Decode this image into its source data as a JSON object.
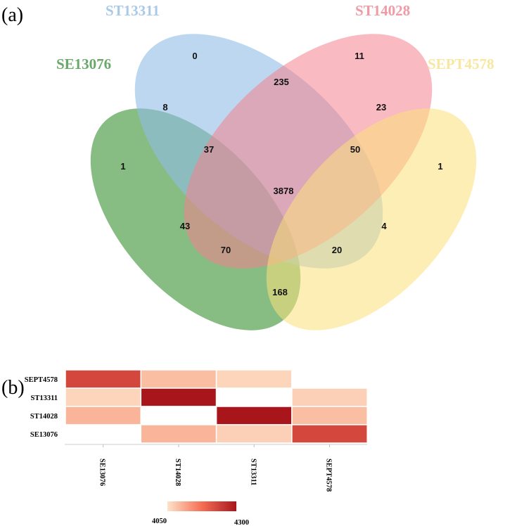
{
  "chart_data": [
    {
      "type": "venn",
      "panel_label": "(a)",
      "sets": [
        {
          "name": "SE13076",
          "color": "#5fa55a"
        },
        {
          "name": "ST13311",
          "color": "#8fbce4"
        },
        {
          "name": "ST14028",
          "color": "#f4828e"
        },
        {
          "name": "SEPT4578",
          "color": "#fbe07a"
        }
      ],
      "regions": [
        {
          "sets": [
            "ST13311"
          ],
          "value": "0"
        },
        {
          "sets": [
            "ST14028"
          ],
          "value": "11"
        },
        {
          "sets": [
            "ST13311",
            "ST14028"
          ],
          "value": "235"
        },
        {
          "sets": [
            "SE13076",
            "ST13311"
          ],
          "value": "8"
        },
        {
          "sets": [
            "ST14028",
            "SEPT4578"
          ],
          "value": "23"
        },
        {
          "sets": [
            "SE13076"
          ],
          "value": "1"
        },
        {
          "sets": [
            "SE13076",
            "ST13311",
            "ST14028"
          ],
          "value": "37"
        },
        {
          "sets": [
            "ST13311",
            "ST14028",
            "SEPT4578"
          ],
          "value": "50"
        },
        {
          "sets": [
            "SEPT4578"
          ],
          "value": "1"
        },
        {
          "sets": [
            "SE13076",
            "ST13311",
            "ST14028",
            "SEPT4578"
          ],
          "value": "3878"
        },
        {
          "sets": [
            "SE13076",
            "ST14028"
          ],
          "value": "43"
        },
        {
          "sets": [
            "ST13311",
            "SEPT4578"
          ],
          "value": "4"
        },
        {
          "sets": [
            "SE13076",
            "ST14028",
            "SEPT4578"
          ],
          "value": "70"
        },
        {
          "sets": [
            "SE13076",
            "ST13311",
            "SEPT4578"
          ],
          "value": "20"
        },
        {
          "sets": [
            "SE13076",
            "SEPT4578"
          ],
          "value": "168"
        }
      ]
    },
    {
      "type": "heatmap",
      "panel_label": "(b)",
      "rows": [
        "SEPT4578",
        "ST13311",
        "ST14028",
        "SE13076"
      ],
      "columns": [
        "SE13076",
        "ST14028",
        "ST13311",
        "SEPT4578"
      ],
      "values": [
        [
          4230,
          4090,
          4065,
          null
        ],
        [
          4065,
          4300,
          null,
          4070
        ],
        [
          4100,
          null,
          4300,
          4090
        ],
        [
          null,
          4100,
          4070,
          4230
        ]
      ],
      "colorscale": {
        "min": 4050,
        "max": 4300,
        "min_label": "4050",
        "max_label": "4300",
        "colors": [
          "#fde3c8",
          "#f46e55",
          "#a8161c"
        ]
      }
    }
  ]
}
